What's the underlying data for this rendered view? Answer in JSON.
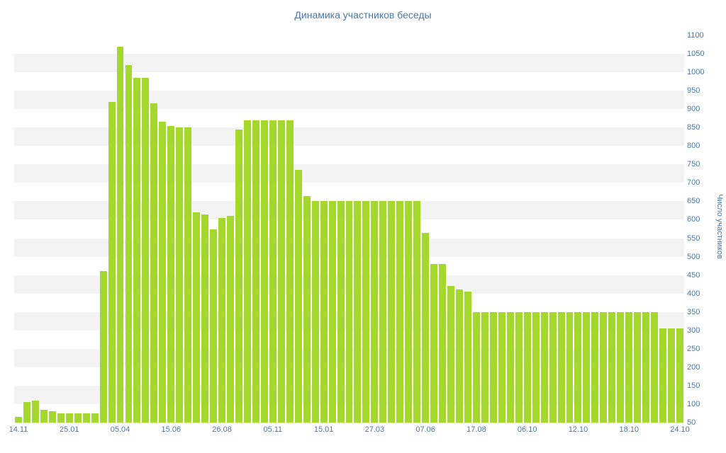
{
  "page": {
    "background": "#ffffff"
  },
  "chart_data": {
    "type": "bar",
    "title": "Динамика участников беседы",
    "xlabel": "",
    "ylabel": "Число участников",
    "ylim": [
      50,
      1100
    ],
    "ytick_step": 50,
    "yticks": [
      50,
      100,
      150,
      200,
      250,
      300,
      350,
      400,
      450,
      500,
      550,
      600,
      650,
      700,
      750,
      800,
      850,
      900,
      950,
      1000,
      1050,
      1100
    ],
    "x_labels": [
      "14.11",
      "25.01",
      "05.04",
      "15.06",
      "26.08",
      "05.11",
      "15.01",
      "27.03",
      "07.06",
      "17.08",
      "06.10",
      "12.10",
      "18.10",
      "24.10"
    ],
    "x_label_every": 6,
    "values": [
      65,
      105,
      110,
      85,
      80,
      75,
      75,
      75,
      75,
      75,
      460,
      920,
      1070,
      1020,
      985,
      985,
      915,
      865,
      855,
      850,
      850,
      620,
      615,
      575,
      605,
      610,
      845,
      870,
      870,
      870,
      870,
      870,
      870,
      735,
      665,
      650,
      650,
      650,
      650,
      650,
      650,
      650,
      650,
      650,
      650,
      650,
      650,
      650,
      565,
      480,
      480,
      420,
      410,
      405,
      350,
      350,
      350,
      350,
      350,
      350,
      350,
      350,
      350,
      350,
      350,
      350,
      350,
      350,
      350,
      350,
      350,
      350,
      350,
      350,
      350,
      350,
      305,
      305,
      305
    ],
    "bar_color": "#a5d82d",
    "text_color": "#4a76a8",
    "stripe_color": "#f3f3f3",
    "grid": "horizontal-stripes",
    "legend": "none"
  }
}
